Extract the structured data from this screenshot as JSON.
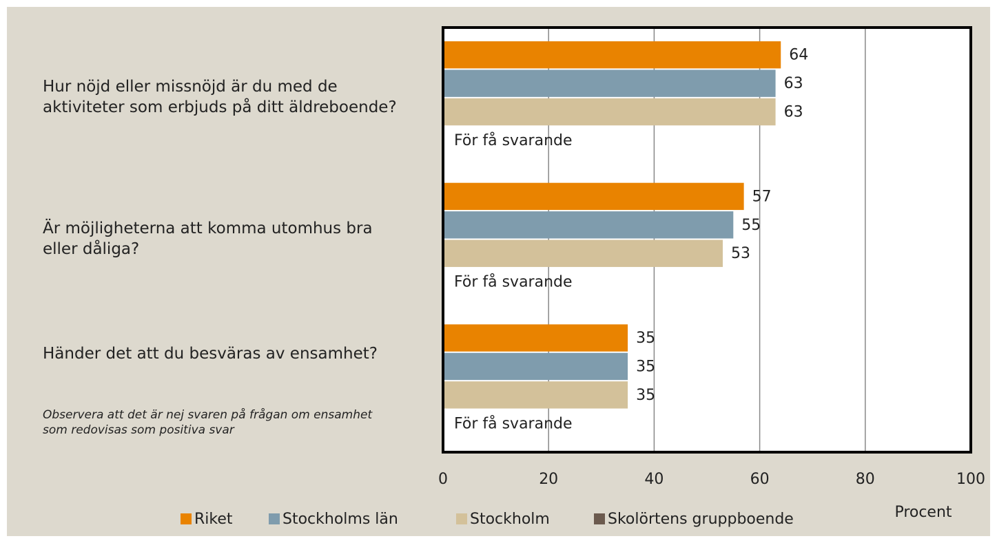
{
  "chart_data": {
    "type": "hbar",
    "categories": [
      "Hur nöjd eller missnöjd är du med de aktiviteter som erbjuds på ditt äldreboende?",
      "Är möjligheterna att komma utomhus bra eller dåliga?",
      "Händer det att du besväras av ensamhet?"
    ],
    "series": [
      {
        "name": "Riket",
        "color": "#e98300",
        "values": [
          64,
          57,
          35
        ]
      },
      {
        "name": "Stockholms län",
        "color": "#7f9cad",
        "values": [
          63,
          55,
          35
        ]
      },
      {
        "name": "Stockholm",
        "color": "#d3c19a",
        "values": [
          63,
          53,
          35
        ]
      },
      {
        "name": "Skolörtens gruppboende",
        "color": "#6b5a4e",
        "values": [
          null,
          null,
          null
        ],
        "value_labels": [
          "För få svarande",
          "För få svarande",
          "För få svarande"
        ]
      }
    ],
    "xlim": [
      0,
      100
    ],
    "xticks": [
      0,
      20,
      40,
      60,
      80,
      100
    ],
    "grid": true,
    "xlabel": "Procent",
    "annotation": "Observera att det är nej svaren på frågan om ensamhet som redovisas som positiva svar"
  }
}
